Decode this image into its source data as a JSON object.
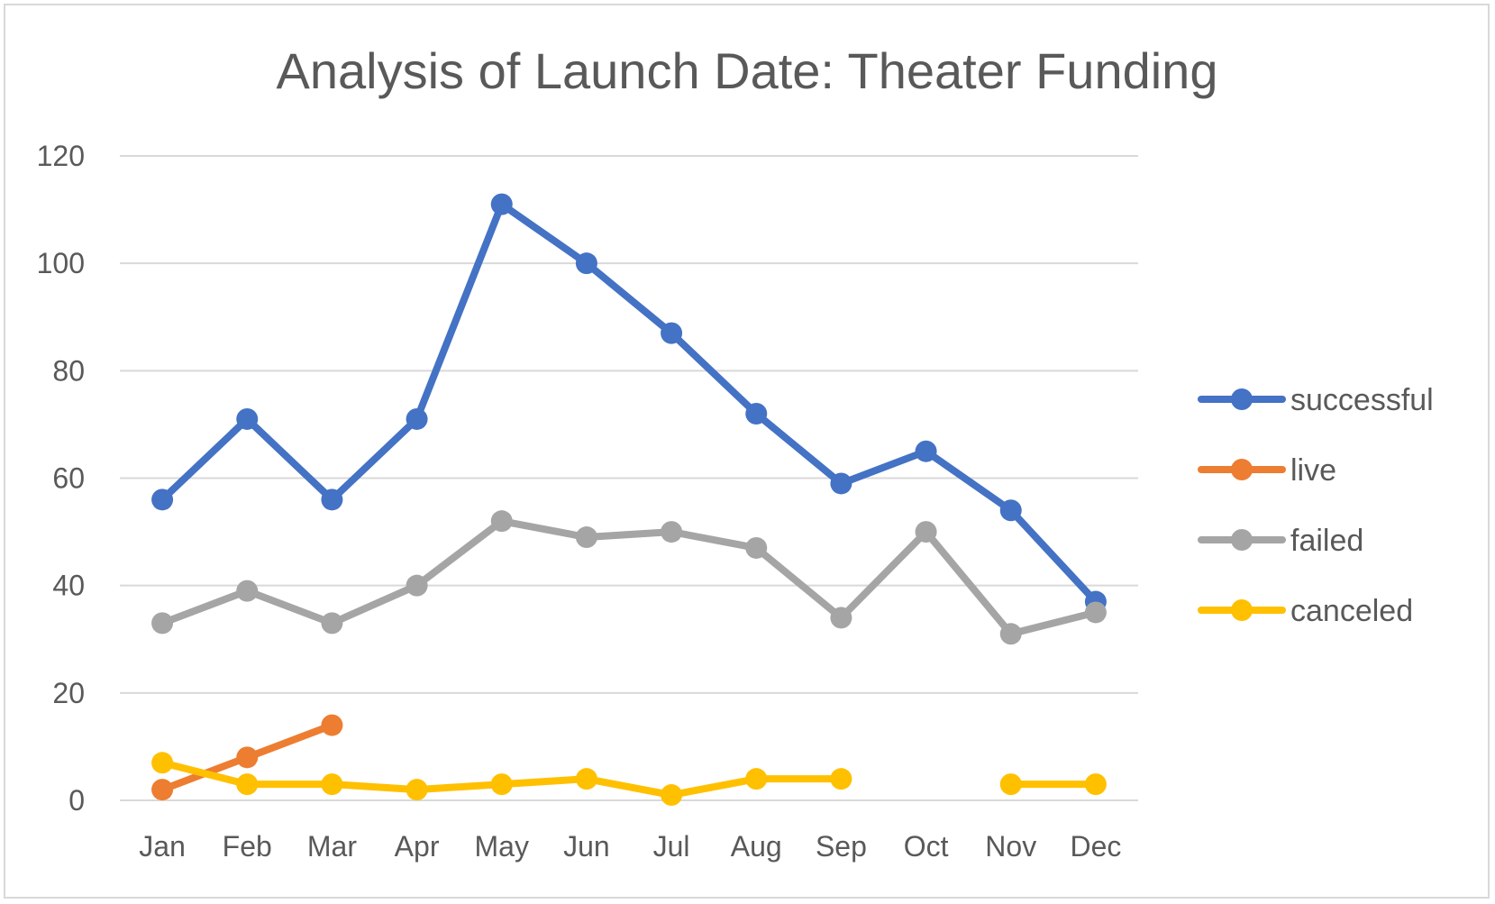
{
  "chart_data": {
    "type": "line",
    "title": "Analysis of Launch Date: Theater Funding",
    "xlabel": "",
    "ylabel": "",
    "categories": [
      "Jan",
      "Feb",
      "Mar",
      "Apr",
      "May",
      "Jun",
      "Jul",
      "Aug",
      "Sep",
      "Oct",
      "Nov",
      "Dec"
    ],
    "ylim": [
      0,
      120
    ],
    "yticks": [
      0,
      20,
      40,
      60,
      80,
      100,
      120
    ],
    "grid": true,
    "legend_position": "right",
    "series": [
      {
        "name": "successful",
        "color": "#4472C4",
        "values": [
          56,
          71,
          56,
          71,
          111,
          100,
          87,
          72,
          59,
          65,
          54,
          37
        ]
      },
      {
        "name": "live",
        "color": "#ED7D31",
        "values": [
          2,
          8,
          14,
          null,
          null,
          null,
          null,
          null,
          null,
          null,
          null,
          null
        ]
      },
      {
        "name": "failed",
        "color": "#A5A5A5",
        "values": [
          33,
          39,
          33,
          40,
          52,
          49,
          50,
          47,
          34,
          50,
          31,
          35
        ]
      },
      {
        "name": "canceled",
        "color": "#FFC000",
        "values": [
          7,
          3,
          3,
          2,
          3,
          4,
          1,
          4,
          4,
          null,
          3,
          3
        ]
      }
    ]
  }
}
